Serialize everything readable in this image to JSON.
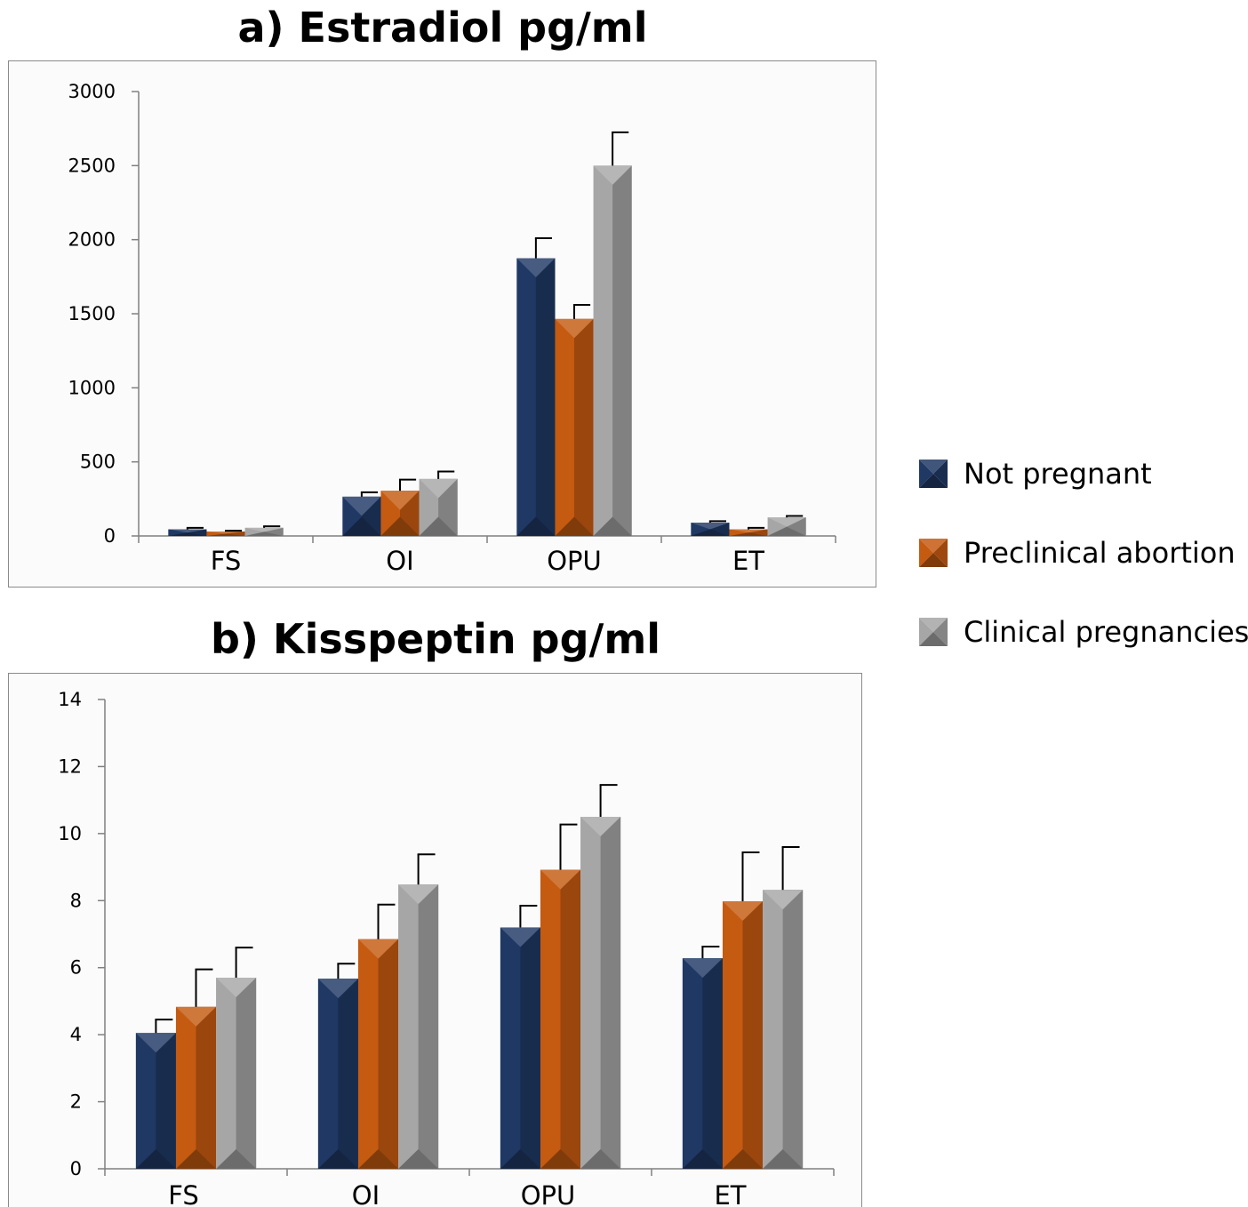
{
  "colors": {
    "not_pregnant": "#1f3864",
    "preclinical_abortion": "#c55a11",
    "clinical_pregnancies": "#a6a6a6"
  },
  "legend": [
    {
      "label": "Not pregnant",
      "color": "#1f3864"
    },
    {
      "label": "Preclinical abortion",
      "color": "#c55a11"
    },
    {
      "label": "Clinical pregnancies",
      "color": "#a6a6a6"
    }
  ],
  "chart_data": [
    {
      "type": "bar",
      "title": "a) Estradiol pg/ml",
      "xlabel": "",
      "ylabel": "",
      "categories": [
        "FS",
        "OI",
        "OPU",
        "ET"
      ],
      "ylim": [
        0,
        3000
      ],
      "yticks": [
        0,
        500,
        1000,
        1500,
        2000,
        2500,
        3000
      ],
      "series": [
        {
          "name": "Not pregnant",
          "values": [
            45,
            265,
            1875,
            90
          ],
          "errors": [
            10,
            30,
            135,
            10
          ]
        },
        {
          "name": "Preclinical abortion",
          "values": [
            30,
            305,
            1465,
            45
          ],
          "errors": [
            5,
            75,
            95,
            10
          ]
        },
        {
          "name": "Clinical pregnancies",
          "values": [
            55,
            385,
            2500,
            125
          ],
          "errors": [
            10,
            50,
            225,
            10
          ]
        }
      ]
    },
    {
      "type": "bar",
      "title": "b) Kisspeptin pg/ml",
      "xlabel": "",
      "ylabel": "",
      "categories": [
        "FS",
        "OI",
        "OPU",
        "ET"
      ],
      "ylim": [
        0,
        14
      ],
      "yticks": [
        0,
        2,
        4,
        6,
        8,
        10,
        12,
        14
      ],
      "series": [
        {
          "name": "Not pregnant",
          "values": [
            4.05,
            5.67,
            7.2,
            6.28
          ],
          "errors": [
            0.4,
            0.45,
            0.65,
            0.35
          ]
        },
        {
          "name": "Preclinical abortion",
          "values": [
            4.83,
            6.85,
            8.92,
            7.98
          ],
          "errors": [
            1.12,
            1.03,
            1.35,
            1.46
          ]
        },
        {
          "name": "Clinical pregnancies",
          "values": [
            5.7,
            8.48,
            10.5,
            8.32
          ],
          "errors": [
            0.9,
            0.9,
            0.95,
            1.28
          ]
        }
      ]
    }
  ]
}
